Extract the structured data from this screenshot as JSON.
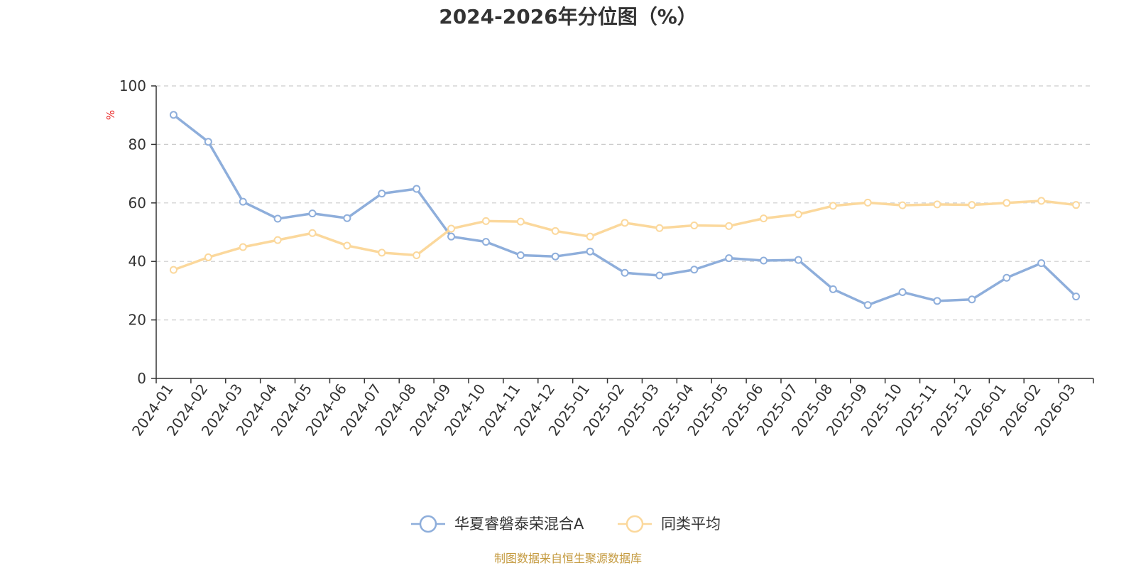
{
  "chart_data": {
    "type": "line",
    "title": "2024-2026年分位图（%）",
    "ylabel": "%",
    "xlabel": "",
    "ylim": [
      0,
      100
    ],
    "yticks": [
      0,
      20,
      40,
      60,
      80,
      100
    ],
    "grid": "horizontal dashed",
    "legend_position": "bottom-center",
    "categories": [
      "2024-01",
      "2024-02",
      "2024-03",
      "2024-04",
      "2024-05",
      "2024-06",
      "2024-07",
      "2024-08",
      "2024-09",
      "2024-10",
      "2024-11",
      "2024-12",
      "2025-01",
      "2025-02",
      "2025-03",
      "2025-04",
      "2025-05",
      "2025-06",
      "2025-07",
      "2025-08",
      "2025-09",
      "2025-10",
      "2025-11",
      "2025-12",
      "2026-01",
      "2026-02",
      "2026-03"
    ],
    "series": [
      {
        "name": "华夏睿磐泰荣混合A",
        "color": "#8eaedb",
        "values": [
          90.1,
          80.9,
          60.4,
          54.6,
          56.4,
          54.8,
          63.2,
          64.8,
          48.5,
          46.7,
          42.1,
          41.7,
          43.4,
          36.1,
          35.2,
          37.2,
          41.1,
          40.3,
          40.5,
          30.5,
          25.1,
          29.5,
          26.5,
          27.0,
          34.4,
          39.4,
          28.0
        ]
      },
      {
        "name": "同类平均",
        "color": "#fbd89c",
        "values": [
          37.1,
          41.4,
          44.9,
          47.3,
          49.7,
          45.4,
          43.0,
          42.1,
          51.2,
          53.8,
          53.6,
          50.4,
          48.5,
          53.2,
          51.4,
          52.3,
          52.1,
          54.7,
          56.1,
          59.0,
          60.1,
          59.2,
          59.5,
          59.3,
          60.0,
          60.7,
          59.3
        ]
      }
    ]
  },
  "source": "制图数据来自恒生聚源数据库",
  "colors": {
    "axis": "#333333",
    "grid": "#cccccc",
    "unit": "#e8201f",
    "source": "#c49a3f",
    "text": "#333333"
  }
}
